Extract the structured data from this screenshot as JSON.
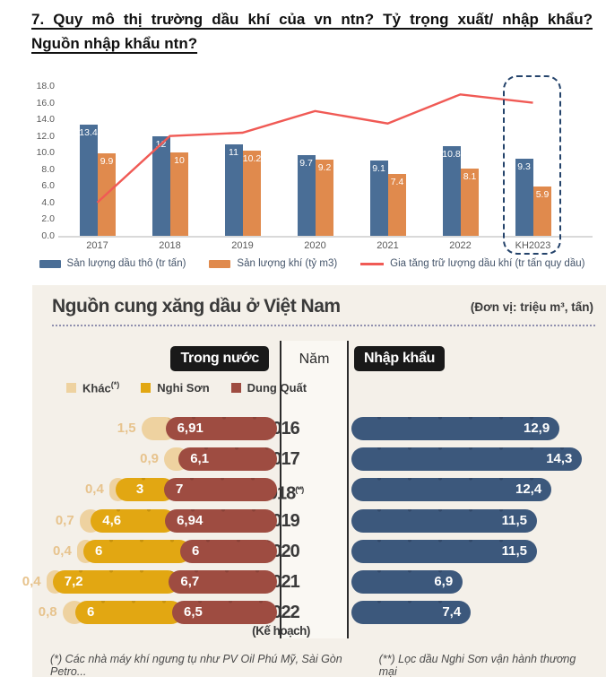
{
  "page": {
    "title_line1": "7. Quy mô thị trường dầu khí của vn ntn? Tỷ trọng xuất/ nhập khẩu?",
    "title_line2": "Nguồn nhập khẩu ntn?"
  },
  "colors": {
    "crude_blue": "#4a6e96",
    "gas_orange": "#e08a4d",
    "reserve_red": "#f05a55",
    "axis_gray": "#595959",
    "legend_text": "#44546a",
    "dash_border": "#24436b",
    "panel_bg": "#f4f0e9",
    "khac_tan": "#eed2a0",
    "khac_dot": "#e3c083",
    "nghison_gold": "#e2a712",
    "nghison_dot": "#c8920c",
    "dungquat_maroon": "#9e4c41",
    "dungquat_dot": "#8a4238",
    "import_blue": "#3c587c",
    "import_dot": "#32496a",
    "badge_bg": "#191919",
    "ink": "#3a3a3a"
  },
  "chart_data": [
    {
      "type": "bar+line",
      "categories": [
        "2017",
        "2018",
        "2019",
        "2020",
        "2021",
        "2022",
        "KH2023"
      ],
      "ylim": [
        0,
        18
      ],
      "ytick_step": 2,
      "highlight_category": "KH2023",
      "legend_position": "bottom",
      "series": [
        {
          "name": "Sản lượng dầu thô (tr tấn)",
          "kind": "bar",
          "color_key": "crude_blue",
          "values": [
            13.4,
            12,
            11,
            9.7,
            9.1,
            10.8,
            9.3
          ],
          "labels": [
            "13.4",
            "12",
            "11",
            "9.7",
            "9.1",
            "10.8",
            "9.3"
          ]
        },
        {
          "name": "Sản lượng khí (tỷ m3)",
          "kind": "bar",
          "color_key": "gas_orange",
          "values": [
            9.9,
            10,
            10.2,
            9.2,
            7.4,
            8.1,
            5.9
          ],
          "labels": [
            "9.9",
            "10",
            "10.2",
            "9.2",
            "7.4",
            "8.1",
            "5.9"
          ]
        },
        {
          "name": "Gia tăng trữ lượng dầu khí (tr tấn quy dầu)",
          "kind": "line",
          "color_key": "reserve_red",
          "values": [
            4,
            12,
            12.4,
            15,
            13.5,
            17,
            16
          ]
        }
      ]
    },
    {
      "type": "stacked-bar-horizontal",
      "title": "Nguồn cung xăng dầu ở Việt Nam",
      "unit_note": "(Đơn vị: triệu m³, tấn)",
      "group_left_label": "Trong nước",
      "center_label": "Năm",
      "group_right_label": "Nhập khẩu",
      "legend": [
        {
          "label": "Khác",
          "sup": "(*)",
          "color_key": "khac_tan"
        },
        {
          "label": "Nghi Sơn",
          "sup": "",
          "color_key": "nghison_gold"
        },
        {
          "label": "Dung Quất",
          "sup": "",
          "color_key": "dungquat_maroon"
        }
      ],
      "rows": [
        {
          "year": "2016",
          "year_sup": "",
          "year_sub": "",
          "khac": 1.5,
          "khac_label": "1,5",
          "nghison": null,
          "nghison_label": "",
          "dungquat": 6.91,
          "dungquat_label": "6,91",
          "import": 12.9,
          "import_label": "12,9"
        },
        {
          "year": "2017",
          "year_sup": "",
          "year_sub": "",
          "khac": 0.9,
          "khac_label": "0,9",
          "nghison": null,
          "nghison_label": "",
          "dungquat": 6.1,
          "dungquat_label": "6,1",
          "import": 14.3,
          "import_label": "14,3"
        },
        {
          "year": "2018",
          "year_sup": "(**)",
          "year_sub": "",
          "khac": 0.4,
          "khac_label": "0,4",
          "nghison": 3,
          "nghison_label": "3",
          "dungquat": 7,
          "dungquat_label": "7",
          "import": 12.4,
          "import_label": "12,4"
        },
        {
          "year": "2019",
          "year_sup": "",
          "year_sub": "",
          "khac": 0.7,
          "khac_label": "0,7",
          "nghison": 4.6,
          "nghison_label": "4,6",
          "dungquat": 6.94,
          "dungquat_label": "6,94",
          "import": 11.5,
          "import_label": "11,5"
        },
        {
          "year": "2020",
          "year_sup": "",
          "year_sub": "",
          "khac": 0.4,
          "khac_label": "0,4",
          "nghison": 6,
          "nghison_label": "6",
          "dungquat": 6,
          "dungquat_label": "6",
          "import": 11.5,
          "import_label": "11,5"
        },
        {
          "year": "2021",
          "year_sup": "",
          "year_sub": "",
          "khac": 0.4,
          "khac_label": "0,4",
          "nghison": 7.2,
          "nghison_label": "7,2",
          "dungquat": 6.7,
          "dungquat_label": "6,7",
          "import": 6.9,
          "import_label": "6,9"
        },
        {
          "year": "2022",
          "year_sup": "",
          "year_sub": "(Kế hoạch)",
          "khac": 0.8,
          "khac_label": "0,8",
          "nghison": 6,
          "nghison_label": "6",
          "dungquat": 6.5,
          "dungquat_label": "6,5",
          "import": 7.4,
          "import_label": "7,4"
        }
      ],
      "footnote_left": "(*) Các nhà máy khí ngưng tụ như PV Oil Phú Mỹ, Sài Gòn Petro...",
      "footnote_right": "(**) Lọc dầu Nghi Sơn vận hành thương mại"
    }
  ]
}
